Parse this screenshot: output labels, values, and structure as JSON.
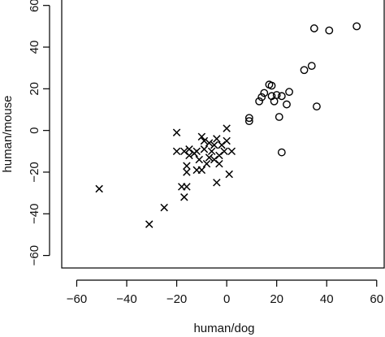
{
  "chart_data": {
    "type": "scatter",
    "title": "",
    "xlabel": "human/dog",
    "ylabel": "human/mouse",
    "xlim": [
      -66,
      63
    ],
    "ylim": [
      -66,
      63
    ],
    "xticks": [
      -60,
      -40,
      -20,
      0,
      20,
      40,
      60
    ],
    "yticks": [
      -60,
      -40,
      -20,
      0,
      20,
      40,
      60
    ],
    "xtick_labels": [
      "−60",
      "−40",
      "−20",
      "0",
      "20",
      "40",
      "60"
    ],
    "ytick_labels": [
      "−60",
      "−40",
      "−20",
      "0",
      "20",
      "40",
      "60"
    ],
    "grid": false,
    "series": [
      {
        "marker": "x",
        "points": [
          [
            -51,
            -28
          ],
          [
            -31,
            -45
          ],
          [
            -25,
            -37
          ],
          [
            -17,
            -32
          ],
          [
            -18,
            -27
          ],
          [
            -16,
            -27
          ],
          [
            -20,
            -1
          ],
          [
            -20,
            -10
          ],
          [
            -17,
            -10
          ],
          [
            -15,
            -9
          ],
          [
            -16,
            -17
          ],
          [
            -16,
            -20
          ],
          [
            -15,
            -12
          ],
          [
            -13,
            -11
          ],
          [
            -12,
            -10
          ],
          [
            -11,
            -14
          ],
          [
            -10,
            -3
          ],
          [
            -9,
            -9
          ],
          [
            -8,
            -16
          ],
          [
            -7,
            -13
          ],
          [
            -6,
            -10
          ],
          [
            -5,
            -7
          ],
          [
            -4,
            -4
          ],
          [
            -4,
            -25
          ],
          [
            -3,
            -12
          ],
          [
            -2,
            -7
          ],
          [
            -1,
            -10
          ],
          [
            0,
            -5
          ],
          [
            0,
            1
          ],
          [
            1,
            -21
          ],
          [
            2,
            -10
          ],
          [
            -10,
            -19
          ],
          [
            -12,
            -19
          ],
          [
            -9,
            -5
          ],
          [
            -3,
            -16
          ],
          [
            -5,
            -14
          ],
          [
            -7,
            -6
          ]
        ]
      },
      {
        "marker": "o",
        "points": [
          [
            9,
            6
          ],
          [
            9,
            4.5
          ],
          [
            13,
            14
          ],
          [
            14,
            16
          ],
          [
            15,
            18
          ],
          [
            17,
            22
          ],
          [
            18,
            21.5
          ],
          [
            18,
            16.5
          ],
          [
            19,
            14
          ],
          [
            20,
            17
          ],
          [
            21,
            6.5
          ],
          [
            22,
            16.5
          ],
          [
            24,
            12.5
          ],
          [
            25,
            18.5
          ],
          [
            22,
            -10.5
          ],
          [
            31,
            29
          ],
          [
            34,
            31
          ],
          [
            36,
            11.5
          ],
          [
            35,
            49
          ],
          [
            41,
            48
          ],
          [
            52,
            50
          ]
        ]
      }
    ]
  }
}
